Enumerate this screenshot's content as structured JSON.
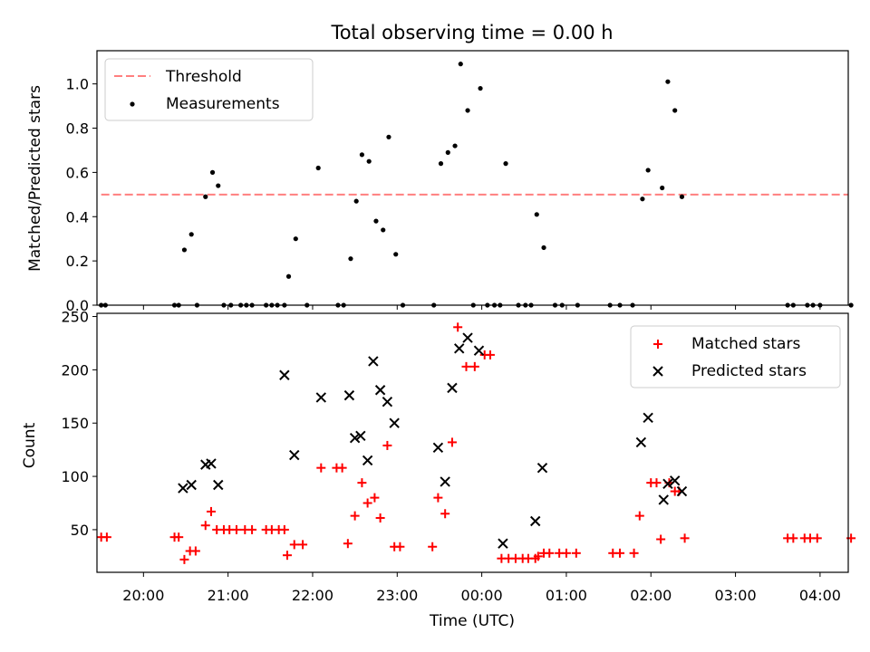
{
  "chart_data": [
    {
      "type": "scatter",
      "title": "Total observing time = 0.00 h",
      "ylabel": "Matched/Predicted stars",
      "xlabel": "",
      "xlim": [
        "19:27",
        "04:20"
      ],
      "ylim": [
        0,
        1.15
      ],
      "yticks": [
        0.0,
        0.2,
        0.4,
        0.6,
        0.8,
        1.0
      ],
      "ytick_labels": [
        "0.0",
        "0.2",
        "0.4",
        "0.6",
        "0.8",
        "1.0"
      ],
      "legend_position": "upper left",
      "threshold": {
        "name": "Threshold",
        "value": 0.5,
        "x": [
          "19:30",
          "04:20"
        ],
        "color": "#ff7f7f",
        "style": "dashed"
      },
      "series": [
        {
          "name": "Measurements",
          "color": "#000000",
          "marker": "dot",
          "points": [
            [
              "19:30",
              0
            ],
            [
              "19:33",
              0
            ],
            [
              "20:22",
              0
            ],
            [
              "20:25",
              0
            ],
            [
              "20:29",
              0.25
            ],
            [
              "20:34",
              0.32
            ],
            [
              "20:38",
              0
            ],
            [
              "20:44",
              0.49
            ],
            [
              "20:49",
              0.6
            ],
            [
              "20:53",
              0.54
            ],
            [
              "20:57",
              0
            ],
            [
              "21:02",
              0
            ],
            [
              "21:09",
              0
            ],
            [
              "21:13",
              0
            ],
            [
              "21:17",
              0
            ],
            [
              "21:27",
              0
            ],
            [
              "21:31",
              0
            ],
            [
              "21:35",
              0
            ],
            [
              "21:40",
              0
            ],
            [
              "21:43",
              0.13
            ],
            [
              "21:48",
              0.3
            ],
            [
              "21:56",
              0
            ],
            [
              "22:04",
              0.62
            ],
            [
              "22:18",
              0
            ],
            [
              "22:22",
              0
            ],
            [
              "22:27",
              0.21
            ],
            [
              "22:31",
              0.47
            ],
            [
              "22:35",
              0.68
            ],
            [
              "22:40",
              0.65
            ],
            [
              "22:45",
              0.38
            ],
            [
              "22:50",
              0.34
            ],
            [
              "22:54",
              0.76
            ],
            [
              "22:59",
              0.23
            ],
            [
              "23:04",
              0
            ],
            [
              "23:26",
              0
            ],
            [
              "23:31",
              0.64
            ],
            [
              "23:36",
              0.69
            ],
            [
              "23:41",
              0.72
            ],
            [
              "23:45",
              1.09
            ],
            [
              "23:50",
              0.88
            ],
            [
              "23:54",
              0
            ],
            [
              "23:59",
              0.98
            ],
            [
              "00:04",
              0
            ],
            [
              "00:09",
              0
            ],
            [
              "00:13",
              0
            ],
            [
              "00:17",
              0.64
            ],
            [
              "00:26",
              0
            ],
            [
              "00:31",
              0
            ],
            [
              "00:35",
              0
            ],
            [
              "00:39",
              0.41
            ],
            [
              "00:44",
              0.26
            ],
            [
              "00:52",
              0
            ],
            [
              "00:57",
              0
            ],
            [
              "01:08",
              0
            ],
            [
              "01:31",
              0
            ],
            [
              "01:38",
              0
            ],
            [
              "01:47",
              0
            ],
            [
              "01:54",
              0.48
            ],
            [
              "01:58",
              0.61
            ],
            [
              "02:08",
              0.53
            ],
            [
              "02:12",
              1.01
            ],
            [
              "02:17",
              0.88
            ],
            [
              "02:22",
              0.49
            ],
            [
              "03:37",
              0
            ],
            [
              "03:41",
              0
            ],
            [
              "03:51",
              0
            ],
            [
              "03:55",
              0
            ],
            [
              "04:00",
              0
            ],
            [
              "04:22",
              0
            ]
          ]
        }
      ]
    },
    {
      "type": "scatter",
      "title": "",
      "xlabel": "Time (UTC)",
      "ylabel": "Count",
      "xlim": [
        "19:27",
        "04:20"
      ],
      "ylim": [
        10,
        253
      ],
      "yticks": [
        50,
        100,
        150,
        200,
        250
      ],
      "ytick_labels": [
        "50",
        "100",
        "150",
        "200",
        "250"
      ],
      "xticks": [
        "20:00",
        "21:00",
        "22:00",
        "23:00",
        "00:00",
        "01:00",
        "02:00",
        "03:00",
        "04:00"
      ],
      "legend_position": "upper right",
      "series": [
        {
          "name": "Matched stars",
          "color": "#ff0000",
          "marker": "plus",
          "points": [
            [
              "19:30",
              43
            ],
            [
              "19:34",
              43
            ],
            [
              "20:22",
              43
            ],
            [
              "20:25",
              43
            ],
            [
              "20:29",
              22
            ],
            [
              "20:33",
              30
            ],
            [
              "20:37",
              30
            ],
            [
              "20:44",
              54
            ],
            [
              "20:48",
              67
            ],
            [
              "20:52",
              50
            ],
            [
              "20:57",
              50
            ],
            [
              "21:01",
              50
            ],
            [
              "21:06",
              50
            ],
            [
              "21:12",
              50
            ],
            [
              "21:17",
              50
            ],
            [
              "21:27",
              50
            ],
            [
              "21:31",
              50
            ],
            [
              "21:36",
              50
            ],
            [
              "21:40",
              50
            ],
            [
              "21:42",
              26
            ],
            [
              "21:47",
              36
            ],
            [
              "21:53",
              36
            ],
            [
              "22:06",
              108
            ],
            [
              "22:17",
              108
            ],
            [
              "22:21",
              108
            ],
            [
              "22:25",
              37
            ],
            [
              "22:30",
              63
            ],
            [
              "22:35",
              94
            ],
            [
              "22:39",
              75
            ],
            [
              "22:44",
              80
            ],
            [
              "22:48",
              61
            ],
            [
              "22:53",
              129
            ],
            [
              "22:58",
              34
            ],
            [
              "23:02",
              34
            ],
            [
              "23:25",
              34
            ],
            [
              "23:29",
              80
            ],
            [
              "23:34",
              65
            ],
            [
              "23:39",
              132
            ],
            [
              "23:43",
              240
            ],
            [
              "23:49",
              203
            ],
            [
              "23:55",
              203
            ],
            [
              "00:02",
              214
            ],
            [
              "00:06",
              214
            ],
            [
              "00:14",
              23
            ],
            [
              "00:19",
              23
            ],
            [
              "00:24",
              23
            ],
            [
              "00:29",
              23
            ],
            [
              "00:33",
              23
            ],
            [
              "00:38",
              23
            ],
            [
              "00:40",
              25
            ],
            [
              "00:44",
              28
            ],
            [
              "00:48",
              28
            ],
            [
              "00:55",
              28
            ],
            [
              "01:00",
              28
            ],
            [
              "01:07",
              28
            ],
            [
              "01:33",
              28
            ],
            [
              "01:38",
              28
            ],
            [
              "01:48",
              28
            ],
            [
              "01:52",
              63
            ],
            [
              "02:00",
              94
            ],
            [
              "02:04",
              94
            ],
            [
              "02:07",
              41
            ],
            [
              "02:13",
              94
            ],
            [
              "02:17",
              86
            ],
            [
              "02:20",
              86
            ],
            [
              "02:24",
              42
            ],
            [
              "03:37",
              42
            ],
            [
              "03:41",
              42
            ],
            [
              "03:49",
              42
            ],
            [
              "03:53",
              42
            ],
            [
              "03:58",
              42
            ],
            [
              "04:22",
              42
            ]
          ]
        },
        {
          "name": "Predicted stars",
          "color": "#000000",
          "marker": "x",
          "points": [
            [
              "20:28",
              89
            ],
            [
              "20:34",
              92
            ],
            [
              "20:44",
              111
            ],
            [
              "20:48",
              112
            ],
            [
              "20:53",
              92
            ],
            [
              "21:40",
              195
            ],
            [
              "21:47",
              120
            ],
            [
              "22:06",
              174
            ],
            [
              "22:26",
              176
            ],
            [
              "22:30",
              136
            ],
            [
              "22:34",
              138
            ],
            [
              "22:39",
              115
            ],
            [
              "22:43",
              208
            ],
            [
              "22:48",
              181
            ],
            [
              "22:53",
              170
            ],
            [
              "22:58",
              150
            ],
            [
              "23:29",
              127
            ],
            [
              "23:34",
              95
            ],
            [
              "23:39",
              183
            ],
            [
              "23:44",
              220
            ],
            [
              "23:50",
              230
            ],
            [
              "23:58",
              218
            ],
            [
              "00:15",
              37
            ],
            [
              "00:38",
              58
            ],
            [
              "00:43",
              108
            ],
            [
              "01:53",
              132
            ],
            [
              "01:58",
              155
            ],
            [
              "02:09",
              78
            ],
            [
              "02:12",
              93
            ],
            [
              "02:17",
              96
            ],
            [
              "02:22",
              86
            ]
          ]
        }
      ]
    }
  ]
}
